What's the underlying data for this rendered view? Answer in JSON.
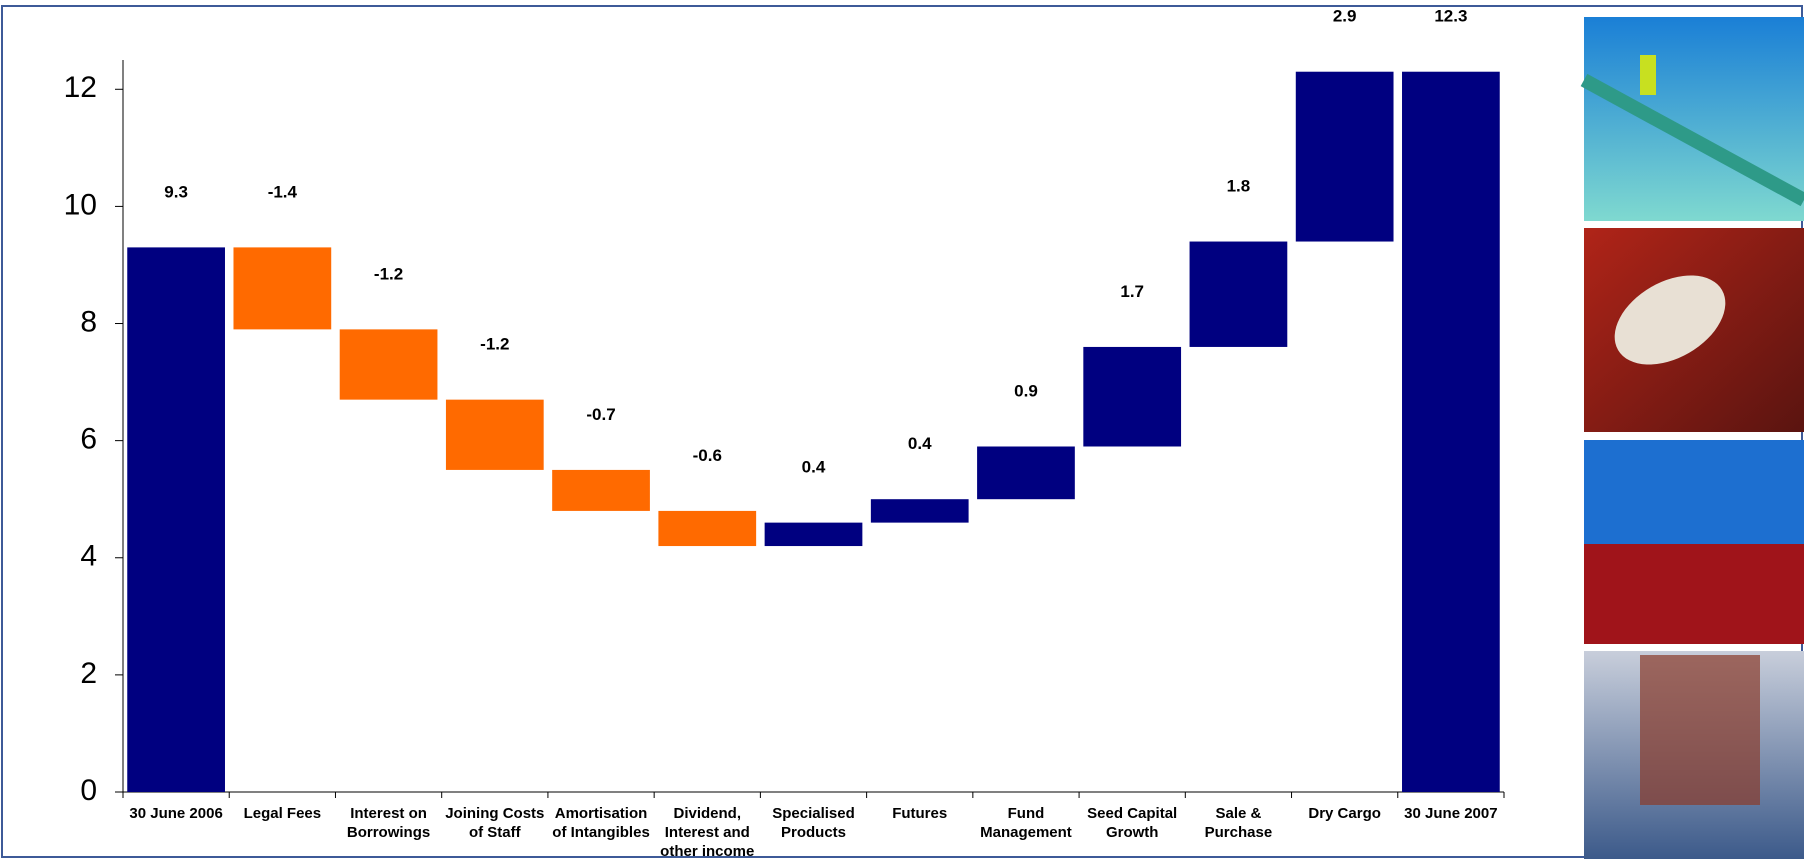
{
  "chart_data": {
    "type": "waterfall",
    "categories": [
      "30 June 2006",
      "Legal Fees",
      "Interest on\nBorrowings",
      "Joining Costs\nof Staff",
      "Amortisation\nof Intangibles",
      "Dividend,\nInterest  and\nother income",
      "Specialised\nProducts",
      "Futures",
      "Fund\nManagement",
      "Seed Capital\nGrowth",
      "Sale &\nPurchase",
      "Dry Cargo",
      "30 June 2007"
    ],
    "values": [
      9.3,
      -1.4,
      -1.2,
      -1.2,
      -0.7,
      -0.6,
      0.4,
      0.4,
      0.9,
      1.7,
      1.8,
      2.9,
      12.3
    ],
    "is_total": [
      true,
      false,
      false,
      false,
      false,
      false,
      false,
      false,
      false,
      false,
      false,
      false,
      true
    ],
    "total_color": "#000080",
    "increase_color": "#000080",
    "decrease_color": "#ff6a00",
    "ylim": [
      0,
      12.5
    ],
    "yticks": [
      0,
      2,
      4,
      6,
      8,
      10,
      12
    ]
  }
}
